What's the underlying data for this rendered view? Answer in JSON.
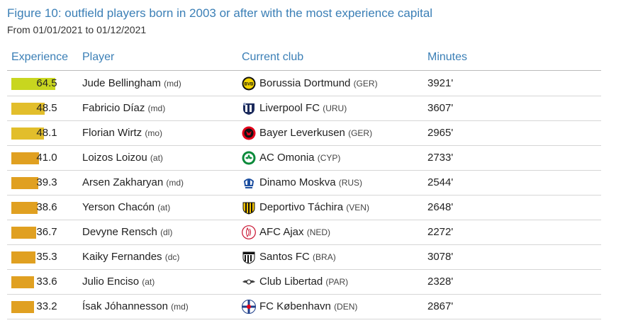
{
  "title": "Figure 10: outfield players born in 2003 or after with the most experience capital",
  "subtitle": "From 01/01/2021 to 01/12/2021",
  "headers": {
    "experience": "Experience",
    "player": "Player",
    "club": "Current club",
    "minutes": "Minutes"
  },
  "colors": {
    "title": "#3b7fb6",
    "bar_high": "#c8d61f",
    "bar_mid": "#e2be2b",
    "bar_low": "#e0a021"
  },
  "rows": [
    {
      "experience": "64.5",
      "bar_fraction": 0.775,
      "bar_color": "#c8d61f",
      "player": "Jude Bellingham",
      "pos": "(md)",
      "club": "Borussia Dortmund",
      "country": "(GER)",
      "badge": "bvb-badge-icon",
      "minutes": "3921'"
    },
    {
      "experience": "48.5",
      "bar_fraction": 0.583,
      "bar_color": "#e2be2b",
      "player": "Fabricio Díaz",
      "pos": "(md)",
      "club": "Liverpool FC",
      "country": "(URU)",
      "badge": "liverpool-uru-badge-icon",
      "minutes": "3607'"
    },
    {
      "experience": "48.1",
      "bar_fraction": 0.578,
      "bar_color": "#e2be2b",
      "player": "Florian Wirtz",
      "pos": "(mo)",
      "club": "Bayer Leverkusen",
      "country": "(GER)",
      "badge": "leverkusen-badge-icon",
      "minutes": "2965'"
    },
    {
      "experience": "41.0",
      "bar_fraction": 0.493,
      "bar_color": "#e0a021",
      "player": "Loizos Loizou",
      "pos": "(at)",
      "club": "AC Omonia",
      "country": "(CYP)",
      "badge": "omonia-badge-icon",
      "minutes": "2733'"
    },
    {
      "experience": "39.3",
      "bar_fraction": 0.472,
      "bar_color": "#e0a021",
      "player": "Arsen Zakharyan",
      "pos": "(md)",
      "club": "Dinamo Moskva",
      "country": "(RUS)",
      "badge": "dinamo-badge-icon",
      "minutes": "2544'"
    },
    {
      "experience": "38.6",
      "bar_fraction": 0.464,
      "bar_color": "#e0a021",
      "player": "Yerson Chacón",
      "pos": "(at)",
      "club": "Deportivo Táchira",
      "country": "(VEN)",
      "badge": "tachira-badge-icon",
      "minutes": "2648'"
    },
    {
      "experience": "36.7",
      "bar_fraction": 0.441,
      "bar_color": "#e0a021",
      "player": "Devyne Rensch",
      "pos": "(dl)",
      "club": "AFC Ajax",
      "country": "(NED)",
      "badge": "ajax-badge-icon",
      "minutes": "2272'"
    },
    {
      "experience": "35.3",
      "bar_fraction": 0.424,
      "bar_color": "#e0a021",
      "player": "Kaiky Fernandes",
      "pos": "(dc)",
      "club": "Santos FC",
      "country": "(BRA)",
      "badge": "santos-badge-icon",
      "minutes": "3078'"
    },
    {
      "experience": "33.6",
      "bar_fraction": 0.404,
      "bar_color": "#e0a021",
      "player": "Julio Enciso",
      "pos": "(at)",
      "club": "Club Libertad",
      "country": "(PAR)",
      "badge": "libertad-badge-icon",
      "minutes": "2328'"
    },
    {
      "experience": "33.2",
      "bar_fraction": 0.399,
      "bar_color": "#e0a021",
      "player": "Ísak Jóhannesson",
      "pos": "(md)",
      "club": "FC København",
      "country": "(DEN)",
      "badge": "copenhagen-badge-icon",
      "minutes": "2867'"
    }
  ]
}
